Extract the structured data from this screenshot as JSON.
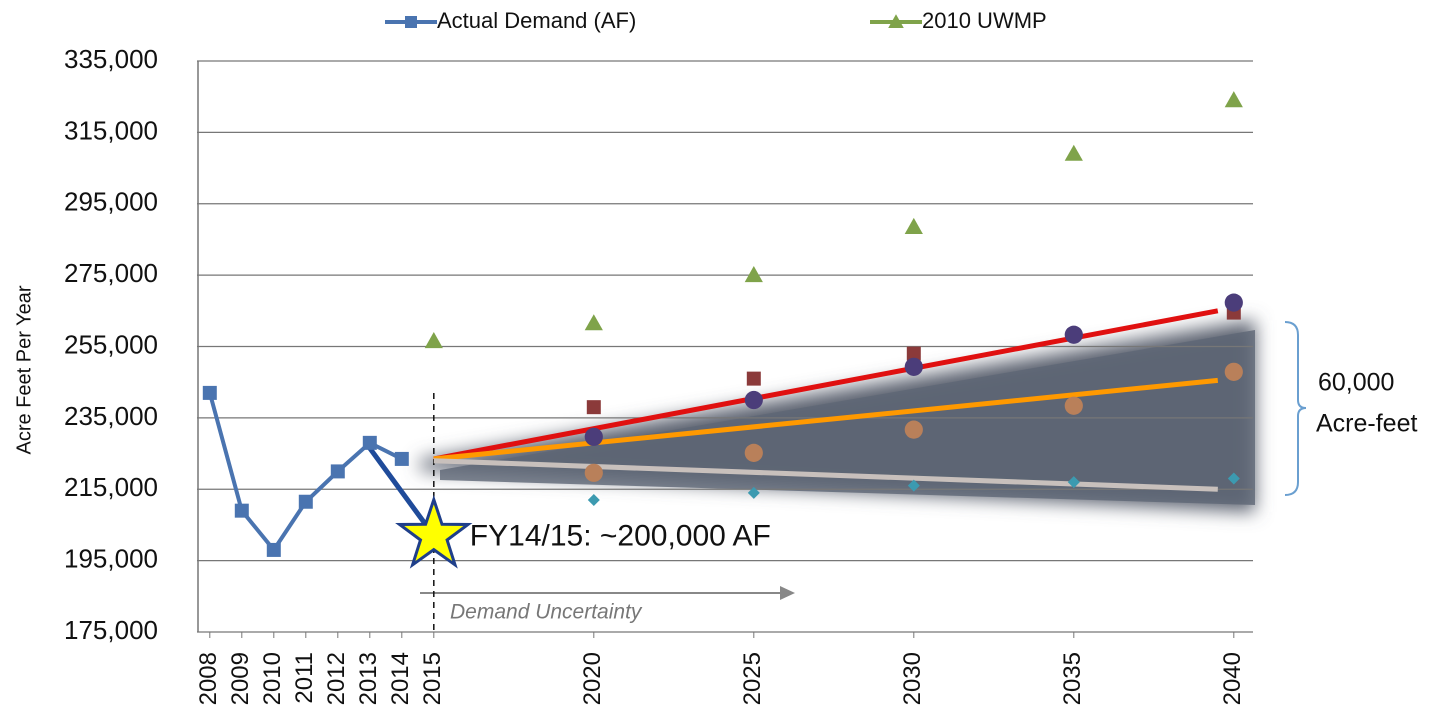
{
  "chart_data": {
    "type": "line",
    "y_label": "Acre Feet Per Year",
    "xlim": [
      2007.6,
      2040.6
    ],
    "ylim": [
      175000,
      335000
    ],
    "xticks": [
      2008,
      2009,
      2010,
      2011,
      2012,
      2013,
      2014,
      2015,
      2020,
      2025,
      2030,
      2035,
      2040
    ],
    "yticks": [
      {
        "value": 175000,
        "label": "175,000"
      },
      {
        "value": 195000,
        "label": "195,000"
      },
      {
        "value": 215000,
        "label": "215,000"
      },
      {
        "value": 235000,
        "label": "235,000"
      },
      {
        "value": 255000,
        "label": "255,000"
      },
      {
        "value": 275000,
        "label": "275,000"
      },
      {
        "value": 295000,
        "label": "295,000"
      },
      {
        "value": 315000,
        "label": "315,000"
      },
      {
        "value": 335000,
        "label": "335,000"
      }
    ],
    "grid": true,
    "legend": "top",
    "series": [
      {
        "name": "Actual Demand (AF)",
        "color": "#4a74b0",
        "marker": "square",
        "line": true,
        "x": [
          2008,
          2009,
          2010,
          2011,
          2012,
          2013,
          2014
        ],
        "values": [
          242000,
          209000,
          198000,
          211500,
          220000,
          228000,
          223500
        ]
      },
      {
        "name": "2010 UWMP",
        "color": "#7fa34a",
        "marker": "triangle",
        "line": false,
        "x": [
          2015,
          2020,
          2025,
          2030,
          2035,
          2040
        ],
        "values": [
          256500,
          261500,
          275000,
          288500,
          309000,
          324000
        ]
      },
      {
        "color": "#8b3a3a",
        "marker": "square",
        "line": false,
        "x": [
          2020,
          2025,
          2030,
          2040
        ],
        "values": [
          238000,
          246000,
          253000,
          264500
        ]
      },
      {
        "color": "#4b3d7a",
        "marker": "circle",
        "line": false,
        "x": [
          2020,
          2025,
          2030,
          2035,
          2040
        ],
        "values": [
          229700,
          240000,
          249300,
          258300,
          267300
        ]
      },
      {
        "color": "#b9805a",
        "marker": "circle",
        "line": false,
        "x": [
          2020,
          2025,
          2030,
          2035,
          2040
        ],
        "values": [
          219600,
          225200,
          231700,
          238400,
          247900
        ]
      },
      {
        "color": "#3c9ab0",
        "marker": "diamond",
        "line": false,
        "x": [
          2020,
          2025,
          2030,
          2035,
          2040
        ],
        "values": [
          212000,
          214000,
          216000,
          217000,
          218000
        ]
      }
    ],
    "trend_lines": [
      {
        "color": "#e01010",
        "x": [
          2015,
          2039.5
        ],
        "values": [
          223500,
          265000
        ]
      },
      {
        "color": "#ff9900",
        "x": [
          2015,
          2039.5
        ],
        "values": [
          223500,
          245500
        ]
      },
      {
        "color": "#c8c0bc",
        "x": [
          2015,
          2039.5
        ],
        "values": [
          223000,
          215000
        ]
      },
      {
        "color": "#1f4b9a",
        "x": [
          2013,
          2015
        ],
        "values": [
          226500,
          202000
        ]
      }
    ],
    "star": {
      "x": 2015,
      "value": 202000,
      "label": "FY14/15: ~200,000 AF"
    },
    "arrow_label": "Demand Uncertainty",
    "bracket_label": [
      "60,000",
      "Acre-feet"
    ]
  }
}
